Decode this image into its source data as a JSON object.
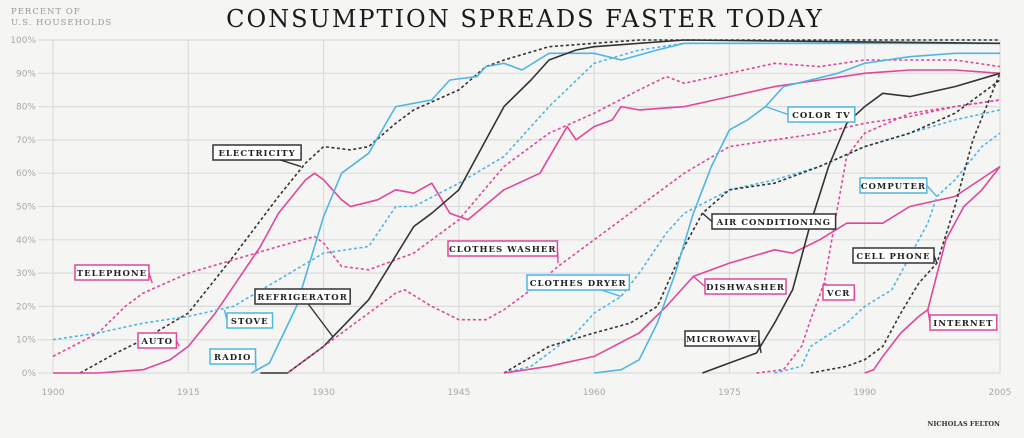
{
  "chart_data": {
    "type": "line",
    "title": "CONSUMPTION SPREADS FASTER TODAY",
    "ylabel": [
      "PERCENT OF",
      "U.S. HOUSEHOLDS"
    ],
    "xlabel": "",
    "credit": "NICHOLAS FELTON",
    "xlim": [
      1900,
      2005
    ],
    "ylim": [
      0,
      100
    ],
    "grid": true,
    "x_ticks": [
      1900,
      1915,
      1930,
      1945,
      1960,
      1975,
      1990,
      2005
    ],
    "y_ticks": [
      "0%",
      "10%",
      "20%",
      "30%",
      "40%",
      "50%",
      "60%",
      "70%",
      "80%",
      "90%",
      "100%"
    ],
    "colors": {
      "pink": "#e0479a",
      "blue": "#4fb6e3",
      "dark": "#333333"
    },
    "series": [
      {
        "name": "TELEPHONE",
        "color": "pink",
        "dashed": true,
        "points": [
          [
            1900,
            5
          ],
          [
            1905,
            12
          ],
          [
            1908,
            20
          ],
          [
            1910,
            24
          ],
          [
            1915,
            30
          ],
          [
            1920,
            34
          ],
          [
            1925,
            38
          ],
          [
            1929,
            41
          ],
          [
            1930,
            39
          ],
          [
            1932,
            32
          ],
          [
            1935,
            31
          ],
          [
            1940,
            36
          ],
          [
            1945,
            46
          ],
          [
            1950,
            62
          ],
          [
            1955,
            72
          ],
          [
            1960,
            78
          ],
          [
            1965,
            85
          ],
          [
            1968,
            89
          ],
          [
            1970,
            87
          ],
          [
            1975,
            90
          ],
          [
            1980,
            93
          ],
          [
            1985,
            92
          ],
          [
            1990,
            94
          ],
          [
            1995,
            94
          ],
          [
            2000,
            94
          ],
          [
            2005,
            92
          ]
        ]
      },
      {
        "name": "ELECTRICITY",
        "color": "dark",
        "dashed": true,
        "points": [
          [
            1903,
            0
          ],
          [
            1907,
            6
          ],
          [
            1910,
            10
          ],
          [
            1915,
            18
          ],
          [
            1920,
            35
          ],
          [
            1925,
            53
          ],
          [
            1928,
            63
          ],
          [
            1930,
            68
          ],
          [
            1933,
            67
          ],
          [
            1935,
            68
          ],
          [
            1938,
            75
          ],
          [
            1940,
            79
          ],
          [
            1945,
            85
          ],
          [
            1948,
            92
          ],
          [
            1950,
            94
          ],
          [
            1955,
            98
          ],
          [
            1960,
            99
          ],
          [
            1965,
            100
          ],
          [
            2005,
            100
          ]
        ]
      },
      {
        "name": "AUTO",
        "color": "pink",
        "dashed": false,
        "points": [
          [
            1900,
            0
          ],
          [
            1905,
            0
          ],
          [
            1910,
            1
          ],
          [
            1913,
            4
          ],
          [
            1915,
            8
          ],
          [
            1918,
            18
          ],
          [
            1920,
            26
          ],
          [
            1923,
            38
          ],
          [
            1925,
            48
          ],
          [
            1928,
            58
          ],
          [
            1929,
            60
          ],
          [
            1930,
            58
          ],
          [
            1932,
            52
          ],
          [
            1933,
            50
          ],
          [
            1936,
            52
          ],
          [
            1938,
            55
          ],
          [
            1940,
            54
          ],
          [
            1942,
            57
          ],
          [
            1944,
            48
          ],
          [
            1946,
            46
          ],
          [
            1950,
            55
          ],
          [
            1954,
            60
          ],
          [
            1957,
            74
          ],
          [
            1958,
            70
          ],
          [
            1960,
            74
          ],
          [
            1962,
            76
          ],
          [
            1963,
            80
          ],
          [
            1965,
            79
          ],
          [
            1970,
            80
          ],
          [
            1975,
            83
          ],
          [
            1980,
            86
          ],
          [
            1985,
            88
          ],
          [
            1990,
            90
          ],
          [
            1995,
            91
          ],
          [
            2000,
            91
          ],
          [
            2005,
            90
          ]
        ]
      },
      {
        "name": "STOVE",
        "color": "blue",
        "dashed": true,
        "points": [
          [
            1900,
            10
          ],
          [
            1905,
            12
          ],
          [
            1910,
            15
          ],
          [
            1915,
            17
          ],
          [
            1920,
            20
          ],
          [
            1925,
            28
          ],
          [
            1930,
            36
          ],
          [
            1935,
            38
          ],
          [
            1938,
            50
          ],
          [
            1940,
            50
          ],
          [
            1945,
            57
          ],
          [
            1950,
            65
          ],
          [
            1955,
            80
          ],
          [
            1960,
            93
          ],
          [
            1965,
            97
          ],
          [
            1970,
            99
          ],
          [
            2005,
            99
          ]
        ]
      },
      {
        "name": "RADIO",
        "color": "blue",
        "dashed": false,
        "points": [
          [
            1922,
            0
          ],
          [
            1924,
            3
          ],
          [
            1927,
            20
          ],
          [
            1930,
            47
          ],
          [
            1932,
            60
          ],
          [
            1935,
            66
          ],
          [
            1938,
            80
          ],
          [
            1940,
            81
          ],
          [
            1942,
            82
          ],
          [
            1944,
            88
          ],
          [
            1947,
            89
          ],
          [
            1948,
            92
          ],
          [
            1950,
            93
          ],
          [
            1952,
            91
          ],
          [
            1955,
            96
          ],
          [
            1960,
            96
          ],
          [
            1963,
            94
          ],
          [
            1967,
            97
          ],
          [
            1970,
            99
          ],
          [
            1980,
            99
          ],
          [
            1990,
            99
          ],
          [
            2005,
            99
          ]
        ]
      },
      {
        "name": "REFRIGERATOR",
        "color": "dark",
        "dashed": false,
        "points": [
          [
            1923,
            0
          ],
          [
            1926,
            0
          ],
          [
            1930,
            8
          ],
          [
            1935,
            22
          ],
          [
            1940,
            44
          ],
          [
            1942,
            48
          ],
          [
            1945,
            55
          ],
          [
            1948,
            70
          ],
          [
            1950,
            80
          ],
          [
            1953,
            88
          ],
          [
            1955,
            94
          ],
          [
            1958,
            97
          ],
          [
            1960,
            98
          ],
          [
            1965,
            99
          ],
          [
            1970,
            100
          ],
          [
            2005,
            99
          ]
        ]
      },
      {
        "name": "CLOTHES WASHER",
        "color": "pink",
        "dashed": true,
        "points": [
          [
            1926,
            0
          ],
          [
            1930,
            8
          ],
          [
            1935,
            18
          ],
          [
            1938,
            24
          ],
          [
            1939,
            25
          ],
          [
            1942,
            20
          ],
          [
            1945,
            16
          ],
          [
            1948,
            16
          ],
          [
            1950,
            19
          ],
          [
            1953,
            25
          ],
          [
            1956,
            32
          ],
          [
            1960,
            40
          ],
          [
            1965,
            50
          ],
          [
            1970,
            60
          ],
          [
            1975,
            68
          ],
          [
            1980,
            70
          ],
          [
            1985,
            72
          ],
          [
            1990,
            75
          ],
          [
            1995,
            77
          ],
          [
            2000,
            80
          ],
          [
            2005,
            82
          ]
        ]
      },
      {
        "name": "CLOTHES DRYER",
        "color": "blue",
        "dashed": true,
        "points": [
          [
            1950,
            0
          ],
          [
            1953,
            2
          ],
          [
            1955,
            6
          ],
          [
            1958,
            12
          ],
          [
            1960,
            18
          ],
          [
            1963,
            23
          ],
          [
            1965,
            30
          ],
          [
            1968,
            42
          ],
          [
            1970,
            48
          ],
          [
            1975,
            55
          ],
          [
            1980,
            58
          ],
          [
            1985,
            62
          ],
          [
            1990,
            68
          ],
          [
            1995,
            72
          ],
          [
            2000,
            76
          ],
          [
            2005,
            79
          ]
        ]
      },
      {
        "name": "AIR CONDITIONING",
        "color": "dark",
        "dashed": true,
        "points": [
          [
            1950,
            0
          ],
          [
            1955,
            8
          ],
          [
            1960,
            12
          ],
          [
            1964,
            15
          ],
          [
            1967,
            20
          ],
          [
            1970,
            38
          ],
          [
            1972,
            48
          ],
          [
            1975,
            55
          ],
          [
            1980,
            57
          ],
          [
            1985,
            62
          ],
          [
            1990,
            68
          ],
          [
            1995,
            72
          ],
          [
            2000,
            78
          ],
          [
            2005,
            88
          ]
        ]
      },
      {
        "name": "DISHWASHER",
        "color": "pink",
        "dashed": false,
        "points": [
          [
            1950,
            0
          ],
          [
            1955,
            2
          ],
          [
            1960,
            5
          ],
          [
            1965,
            12
          ],
          [
            1968,
            20
          ],
          [
            1971,
            29
          ],
          [
            1975,
            33
          ],
          [
            1980,
            37
          ],
          [
            1982,
            36
          ],
          [
            1985,
            40
          ],
          [
            1988,
            45
          ],
          [
            1990,
            45
          ],
          [
            1992,
            45
          ],
          [
            1995,
            50
          ],
          [
            2000,
            53
          ],
          [
            2005,
            62
          ]
        ]
      },
      {
        "name": "MICROWAVE",
        "color": "dark",
        "dashed": false,
        "points": [
          [
            1972,
            0
          ],
          [
            1975,
            3
          ],
          [
            1978,
            6
          ],
          [
            1980,
            15
          ],
          [
            1982,
            25
          ],
          [
            1984,
            45
          ],
          [
            1986,
            62
          ],
          [
            1988,
            75
          ],
          [
            1990,
            80
          ],
          [
            1992,
            84
          ],
          [
            1995,
            83
          ],
          [
            2000,
            86
          ],
          [
            2005,
            90
          ]
        ]
      },
      {
        "name": "COLOR TV",
        "color": "blue",
        "dashed": false,
        "points": [
          [
            1960,
            0
          ],
          [
            1963,
            1
          ],
          [
            1965,
            4
          ],
          [
            1967,
            15
          ],
          [
            1969,
            30
          ],
          [
            1971,
            48
          ],
          [
            1973,
            62
          ],
          [
            1975,
            73
          ],
          [
            1977,
            76
          ],
          [
            1979,
            80
          ],
          [
            1981,
            86
          ],
          [
            1984,
            88
          ],
          [
            1987,
            90
          ],
          [
            1990,
            93
          ],
          [
            1995,
            95
          ],
          [
            2000,
            96
          ],
          [
            2005,
            96
          ]
        ]
      },
      {
        "name": "VCR",
        "color": "pink",
        "dashed": true,
        "points": [
          [
            1978,
            0
          ],
          [
            1981,
            1
          ],
          [
            1983,
            8
          ],
          [
            1984,
            16
          ],
          [
            1985.5,
            27
          ],
          [
            1987,
            50
          ],
          [
            1988,
            65
          ],
          [
            1990,
            72
          ],
          [
            1995,
            78
          ],
          [
            2000,
            80
          ],
          [
            2005,
            82
          ]
        ]
      },
      {
        "name": "COMPUTER",
        "color": "blue",
        "dashed": true,
        "points": [
          [
            1980,
            0
          ],
          [
            1983,
            2
          ],
          [
            1984,
            8
          ],
          [
            1988,
            15
          ],
          [
            1990,
            20
          ],
          [
            1993,
            25
          ],
          [
            1995,
            35
          ],
          [
            1997,
            45
          ],
          [
            1998,
            53
          ],
          [
            2000,
            58
          ],
          [
            2003,
            68
          ],
          [
            2005,
            72
          ]
        ]
      },
      {
        "name": "CELL PHONE",
        "color": "dark",
        "dashed": true,
        "points": [
          [
            1984,
            0
          ],
          [
            1988,
            2
          ],
          [
            1990,
            4
          ],
          [
            1992,
            8
          ],
          [
            1994,
            18
          ],
          [
            1996,
            27
          ],
          [
            1998,
            33
          ],
          [
            2000,
            50
          ],
          [
            2002,
            70
          ],
          [
            2005,
            90
          ]
        ]
      },
      {
        "name": "INTERNET",
        "color": "pink",
        "dashed": false,
        "points": [
          [
            1990,
            0
          ],
          [
            1991,
            1
          ],
          [
            1992,
            5
          ],
          [
            1994,
            12
          ],
          [
            1996,
            17
          ],
          [
            1997,
            19
          ],
          [
            1999,
            40
          ],
          [
            2001,
            50
          ],
          [
            2003,
            55
          ],
          [
            2005,
            62
          ]
        ]
      }
    ]
  }
}
